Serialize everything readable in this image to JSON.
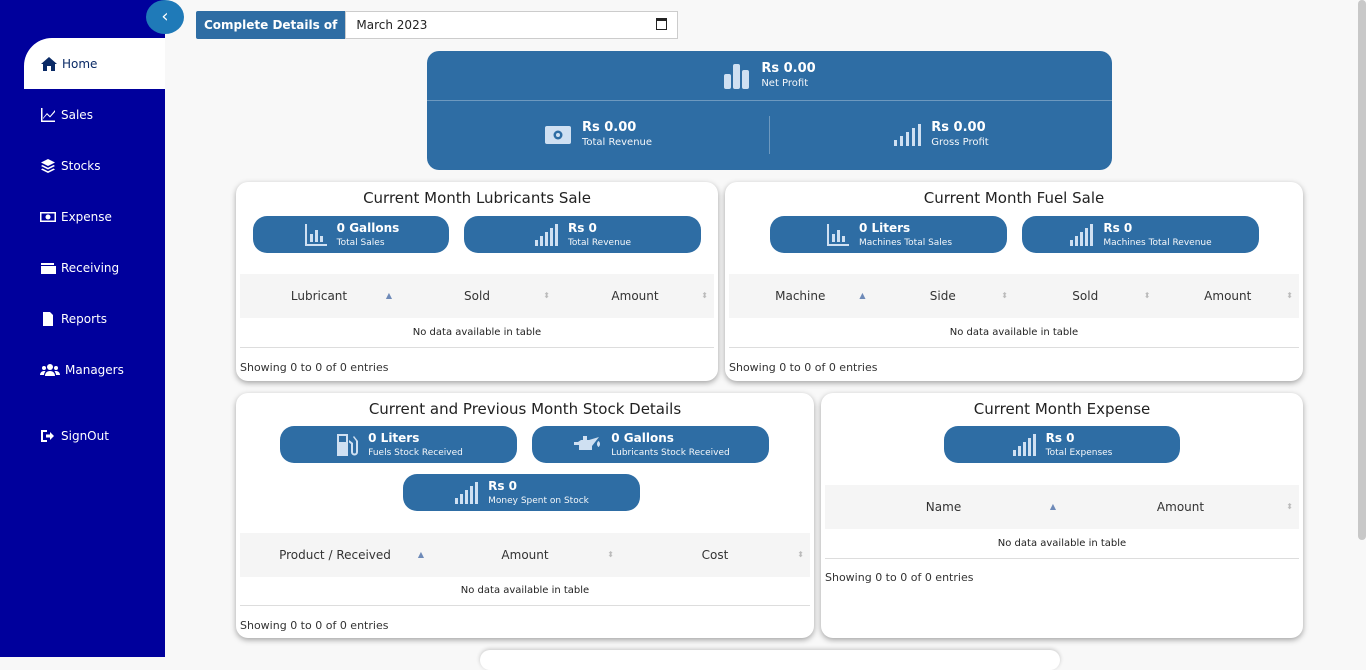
{
  "sidebar": {
    "items": [
      {
        "label": "Home",
        "icon": "home-icon"
      },
      {
        "label": "Sales",
        "icon": "chart-line-icon"
      },
      {
        "label": "Stocks",
        "icon": "layers-icon"
      },
      {
        "label": "Expense",
        "icon": "money-bill-icon"
      },
      {
        "label": "Receiving",
        "icon": "wallet-icon"
      },
      {
        "label": "Reports",
        "icon": "file-icon"
      },
      {
        "label": "Managers",
        "icon": "users-icon"
      },
      {
        "label": "SignOut",
        "icon": "sign-out-icon"
      }
    ],
    "collapse_icon": "chevron-left-icon",
    "colors": {
      "bg": "#00009c",
      "accent": "#1f7ab8"
    }
  },
  "filter": {
    "label": "Complete Details of",
    "value": "March 2023"
  },
  "summary": {
    "net_profit": {
      "value": "Rs 0.00",
      "label": "Net Profit"
    },
    "total_revenue": {
      "value": "Rs 0.00",
      "label": "Total Revenue"
    },
    "gross_profit": {
      "value": "Rs 0.00",
      "label": "Gross Profit"
    },
    "color": "#2e6da4"
  },
  "lubricants": {
    "title": "Current Month Lubricants Sale",
    "stats": [
      {
        "value": "0 Gallons",
        "label": "Total Sales"
      },
      {
        "value": "Rs 0",
        "label": "Total Revenue"
      }
    ],
    "columns": [
      "Lubricant",
      "Sold",
      "Amount"
    ],
    "empty": "No data available in table",
    "showing": "Showing 0 to 0 of 0 entries"
  },
  "fuel": {
    "title": "Current Month Fuel Sale",
    "stats": [
      {
        "value": "0 Liters",
        "label": "Machines Total Sales"
      },
      {
        "value": "Rs 0",
        "label": "Machines Total Revenue"
      }
    ],
    "columns": [
      "Machine",
      "Side",
      "Sold",
      "Amount"
    ],
    "empty": "No data available in table",
    "showing": "Showing 0 to 0 of 0 entries"
  },
  "stock": {
    "title": "Current and Previous Month Stock Details",
    "stats": [
      {
        "value": "0 Liters",
        "label": "Fuels Stock Received"
      },
      {
        "value": "0 Gallons",
        "label": "Lubricants Stock Received"
      },
      {
        "value": "Rs 0",
        "label": "Money Spent on Stock"
      }
    ],
    "columns": [
      "Product / Received",
      "Amount",
      "Cost"
    ],
    "empty": "No data available in table",
    "showing": "Showing 0 to 0 of 0 entries"
  },
  "expense": {
    "title": "Current Month Expense",
    "stats": [
      {
        "value": "Rs 0",
        "label": "Total Expenses"
      }
    ],
    "columns": [
      "Name",
      "Amount"
    ],
    "empty": "No data available in table",
    "showing": "Showing 0 to 0 of 0 entries"
  }
}
